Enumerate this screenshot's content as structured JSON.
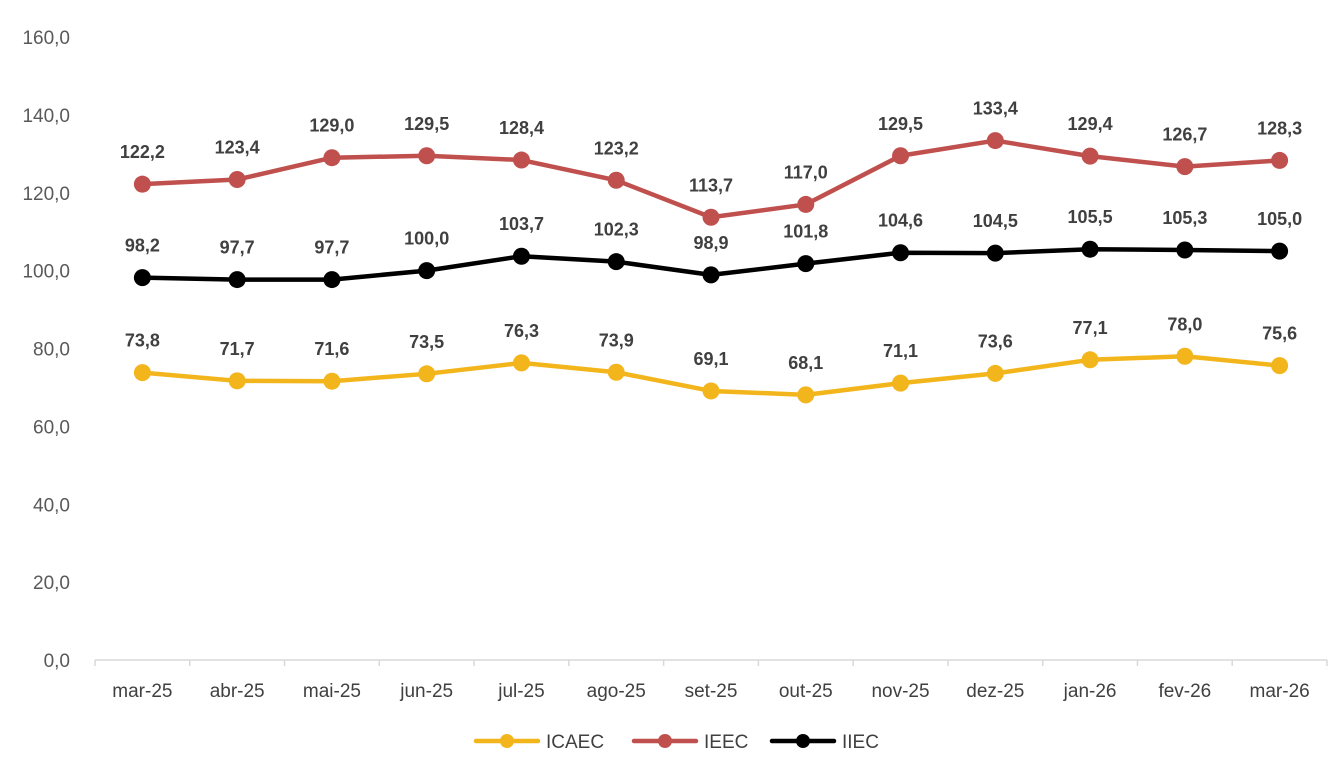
{
  "chart_data": {
    "type": "line",
    "categories": [
      "mar-25",
      "abr-25",
      "mai-25",
      "jun-25",
      "jul-25",
      "ago-25",
      "set-25",
      "out-25",
      "nov-25",
      "dez-25",
      "jan-26",
      "fev-26",
      "mar-26"
    ],
    "series": [
      {
        "name": "ICAEC",
        "color": "#F3B51C",
        "values": [
          73.8,
          71.7,
          71.6,
          73.5,
          76.3,
          73.9,
          69.1,
          68.1,
          71.1,
          73.6,
          77.1,
          78.0,
          75.6
        ],
        "labels": [
          "73,8",
          "71,7",
          "71,6",
          "73,5",
          "76,3",
          "73,9",
          "69,1",
          "68,1",
          "71,1",
          "73,6",
          "77,1",
          "78,0",
          "75,6"
        ]
      },
      {
        "name": "IEEC",
        "color": "#C0504D",
        "values": [
          122.2,
          123.4,
          129.0,
          129.5,
          128.4,
          123.2,
          113.7,
          117.0,
          129.5,
          133.4,
          129.4,
          126.7,
          128.3
        ],
        "labels": [
          "122,2",
          "123,4",
          "129,0",
          "129,5",
          "128,4",
          "123,2",
          "113,7",
          "117,0",
          "129,5",
          "133,4",
          "129,4",
          "126,7",
          "128,3"
        ]
      },
      {
        "name": "IIEC",
        "color": "#000000",
        "values": [
          98.2,
          97.7,
          97.7,
          100.0,
          103.7,
          102.3,
          98.9,
          101.8,
          104.6,
          104.5,
          105.5,
          105.3,
          105.0
        ],
        "labels": [
          "98,2",
          "97,7",
          "97,7",
          "100,0",
          "103,7",
          "102,3",
          "98,9",
          "101,8",
          "104,6",
          "104,5",
          "105,5",
          "105,3",
          "105,0"
        ]
      }
    ],
    "ylim": [
      0,
      160
    ],
    "yticks": [
      "0,0",
      "20,0",
      "40,0",
      "60,0",
      "80,0",
      "100,0",
      "120,0",
      "140,0",
      "160,0"
    ],
    "grid": false,
    "legend": "bottom"
  }
}
